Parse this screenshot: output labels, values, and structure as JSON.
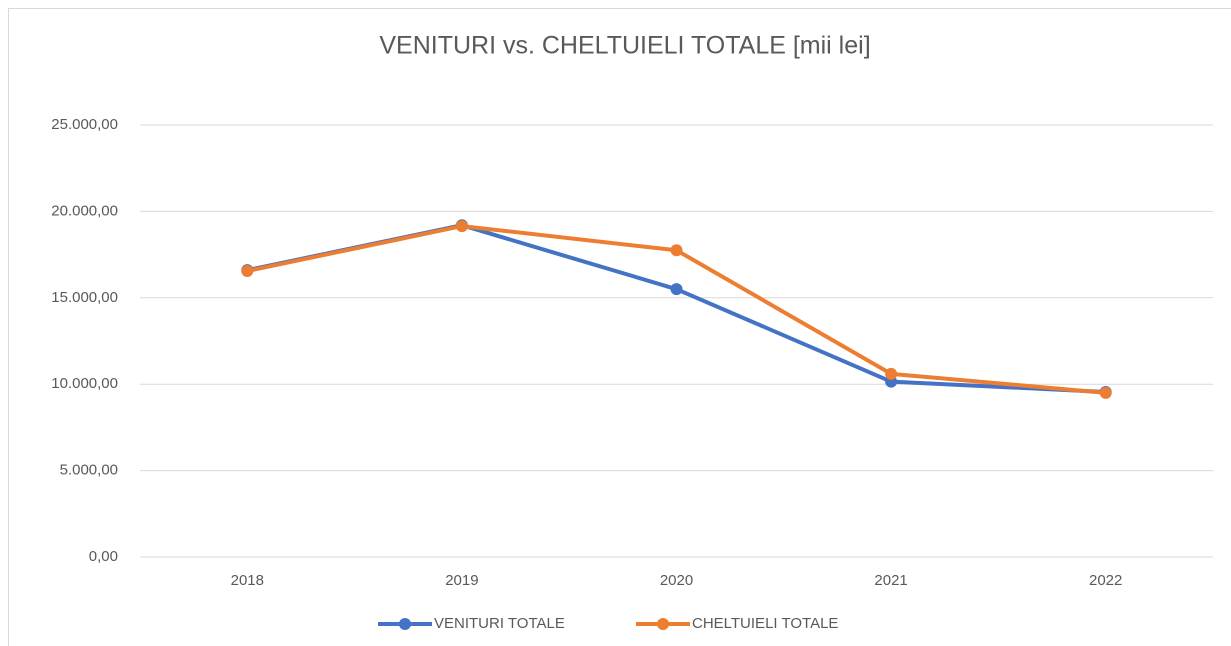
{
  "chart_data": {
    "type": "line",
    "title": "VENITURI vs. CHELTUIELI TOTALE [mii lei]",
    "categories": [
      "2018",
      "2019",
      "2020",
      "2021",
      "2022"
    ],
    "series": [
      {
        "name": "VENITURI TOTALE",
        "color": "#4472c4",
        "values": [
          16600,
          19200,
          15500,
          10150,
          9550
        ]
      },
      {
        "name": "CHELTUIELI TOTALE",
        "color": "#ed7d31",
        "values": [
          16550,
          19150,
          17750,
          10600,
          9500
        ]
      }
    ],
    "ylim": [
      0,
      25000
    ],
    "yticks": [
      {
        "value": 0,
        "label": "0,00"
      },
      {
        "value": 5000,
        "label": "5.000,00"
      },
      {
        "value": 10000,
        "label": "10.000,00"
      },
      {
        "value": 15000,
        "label": "15.000,00"
      },
      {
        "value": 20000,
        "label": "20.000,00"
      },
      {
        "value": 25000,
        "label": "25.000,00"
      }
    ],
    "grid": true,
    "legend": "bottom"
  }
}
